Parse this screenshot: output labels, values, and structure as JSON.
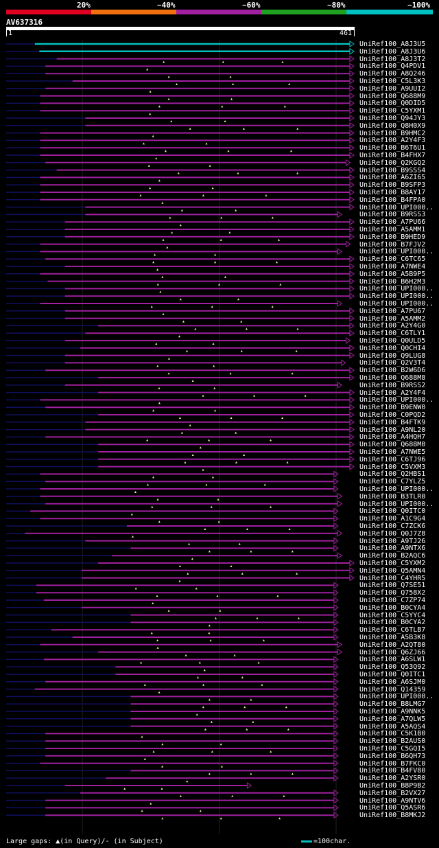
{
  "header": {
    "percent_ticks": [
      "20%",
      "~40%",
      "~60%",
      "~80%",
      "~100%"
    ],
    "identity_colors": [
      "#e00020",
      "#f07010",
      "#a020a0",
      "#20a020",
      "#00c0c0"
    ]
  },
  "query": {
    "id": "AV637316",
    "start": "1",
    "end": "461",
    "length": 461
  },
  "colors": {
    "hit_magenta": "#a020a0",
    "hit_cyan": "#00c0c0",
    "left_tail": "#101060",
    "gap_marker": "#f0f0a0"
  },
  "hits": [
    {
      "label": "UniRef100_A8J3U5",
      "start": 38,
      "end": 461,
      "color": "cyan"
    },
    {
      "label": "UniRef100_A8J3U6",
      "start": 44,
      "end": 461,
      "color": "cyan"
    },
    {
      "label": "UniRef100_A8J3T2",
      "start": 67,
      "end": 461
    },
    {
      "label": "UniRef100_Q4PDV1",
      "start": 52,
      "end": 461
    },
    {
      "label": "UniRef100_A8Q246",
      "start": 52,
      "end": 461
    },
    {
      "label": "UniRef100_C5L3K3",
      "start": 88,
      "end": 461
    },
    {
      "label": "UniRef100_A9UUI2",
      "start": 52,
      "end": 461
    },
    {
      "label": "UniRef100_Q688M9",
      "start": 45,
      "end": 461
    },
    {
      "label": "UniRef100_Q0DID5",
      "start": 45,
      "end": 461
    },
    {
      "label": "UniRef100_C5YXM1",
      "start": 45,
      "end": 461
    },
    {
      "label": "UniRef100_Q94JY3",
      "start": 105,
      "end": 461
    },
    {
      "label": "UniRef100_Q8H0X9",
      "start": 105,
      "end": 461
    },
    {
      "label": "UniRef100_B9HMC2",
      "start": 45,
      "end": 461
    },
    {
      "label": "UniRef100_A2Y4F3",
      "start": 45,
      "end": 461
    },
    {
      "label": "UniRef100_B6T6U1",
      "start": 45,
      "end": 461
    },
    {
      "label": "UniRef100_B4FHX7",
      "start": 45,
      "end": 461
    },
    {
      "label": "UniRef100_Q2KGQ2",
      "start": 52,
      "end": 456
    },
    {
      "label": "UniRef100_B9SSS4",
      "start": 67,
      "end": 461
    },
    {
      "label": "UniRef100_A6ZI65",
      "start": 45,
      "end": 461
    },
    {
      "label": "UniRef100_B9SFP3",
      "start": 45,
      "end": 461
    },
    {
      "label": "UniRef100_B8AY17",
      "start": 45,
      "end": 461
    },
    {
      "label": "UniRef100_B4FPA0",
      "start": 45,
      "end": 461
    },
    {
      "label": "UniRef100_UPI000..",
      "start": 105,
      "end": 461
    },
    {
      "label": "UniRef100_B9RSS3",
      "start": 105,
      "end": 445
    },
    {
      "label": "UniRef100_A7PU66",
      "start": 78,
      "end": 461
    },
    {
      "label": "UniRef100_A5AMM1",
      "start": 78,
      "end": 461
    },
    {
      "label": "UniRef100_B9HED9",
      "start": 78,
      "end": 461
    },
    {
      "label": "UniRef100_B7FJV2",
      "start": 45,
      "end": 456
    },
    {
      "label": "UniRef100_UPI000..",
      "start": 45,
      "end": 445
    },
    {
      "label": "UniRef100_C6TC65",
      "start": 52,
      "end": 461
    },
    {
      "label": "UniRef100_A7NWE4",
      "start": 78,
      "end": 461
    },
    {
      "label": "UniRef100_A5B9P5",
      "start": 45,
      "end": 461
    },
    {
      "label": "UniRef100_B6H2M3",
      "start": 55,
      "end": 461
    },
    {
      "label": "UniRef100_UPI000..",
      "start": 78,
      "end": 461
    },
    {
      "label": "UniRef100_UPI000..",
      "start": 78,
      "end": 461
    },
    {
      "label": "UniRef100_UPI000..",
      "start": 45,
      "end": 445
    },
    {
      "label": "UniRef100_A7PU67",
      "start": 78,
      "end": 461
    },
    {
      "label": "UniRef100_A5AMM2",
      "start": 78,
      "end": 461
    },
    {
      "label": "UniRef100_A2Y4G0",
      "start": 122,
      "end": 461
    },
    {
      "label": "UniRef100_C6TLY1",
      "start": 105,
      "end": 461
    },
    {
      "label": "UniRef100_Q0ULD5",
      "start": 78,
      "end": 456
    },
    {
      "label": "UniRef100_Q0CHI4",
      "start": 98,
      "end": 461
    },
    {
      "label": "UniRef100_Q9LUG8",
      "start": 78,
      "end": 461
    },
    {
      "label": "UniRef100_Q2V3T4",
      "start": 78,
      "end": 450
    },
    {
      "label": "UniRef100_B2W6D6",
      "start": 52,
      "end": 461
    },
    {
      "label": "UniRef100_Q688M8",
      "start": 122,
      "end": 461
    },
    {
      "label": "UniRef100_B9RSS2",
      "start": 78,
      "end": 445
    },
    {
      "label": "UniRef100_A2Y4F4",
      "start": 122,
      "end": 461
    },
    {
      "label": "UniRef100_UPI000..",
      "start": 45,
      "end": 461
    },
    {
      "label": "UniRef100_B9ENW0",
      "start": 52,
      "end": 461
    },
    {
      "label": "UniRef100_C0PQD2",
      "start": 122,
      "end": 461
    },
    {
      "label": "UniRef100_B4FTK9",
      "start": 105,
      "end": 461
    },
    {
      "label": "UniRef100_A9NL20",
      "start": 105,
      "end": 461
    },
    {
      "label": "UniRef100_A4HQH7",
      "start": 52,
      "end": 461
    },
    {
      "label": "UniRef100_Q688M0",
      "start": 122,
      "end": 461
    },
    {
      "label": "UniRef100_A7NWE5",
      "start": 122,
      "end": 461
    },
    {
      "label": "UniRef100_C6TJ96",
      "start": 122,
      "end": 461
    },
    {
      "label": "UniRef100_C5VXM3",
      "start": 122,
      "end": 461
    },
    {
      "label": "UniRef100_Q2HBS1",
      "start": 45,
      "end": 440
    },
    {
      "label": "UniRef100_C7YLZ5",
      "start": 52,
      "end": 440
    },
    {
      "label": "UniRef100_UPI000..",
      "start": 45,
      "end": 440
    },
    {
      "label": "UniRef100_B3TLR0",
      "start": 45,
      "end": 445
    },
    {
      "label": "UniRef100_UPI000..",
      "start": 52,
      "end": 445
    },
    {
      "label": "UniRef100_Q0ITC0",
      "start": 32,
      "end": 440
    },
    {
      "label": "UniRef100_A1C9G4",
      "start": 45,
      "end": 440
    },
    {
      "label": "UniRef100_C7ZCK6",
      "start": 160,
      "end": 440
    },
    {
      "label": "UniRef100_Q0J7Z8",
      "start": 25,
      "end": 445
    },
    {
      "label": "UniRef100_A9TJ26",
      "start": 105,
      "end": 440
    },
    {
      "label": "UniRef100_A9NTX6",
      "start": 165,
      "end": 440
    },
    {
      "label": "UniRef100_B2AQC6",
      "start": 140,
      "end": 445
    },
    {
      "label": "UniRef100_C5YXM2",
      "start": 122,
      "end": 461
    },
    {
      "label": "UniRef100_Q5AMN4",
      "start": 100,
      "end": 461
    },
    {
      "label": "UniRef100_C4YHR5",
      "start": 100,
      "end": 461
    },
    {
      "label": "UniRef100_Q7SE51",
      "start": 40,
      "end": 440
    },
    {
      "label": "UniRef100_Q758X2",
      "start": 40,
      "end": 440
    },
    {
      "label": "UniRef100_C7ZP74",
      "start": 50,
      "end": 440
    },
    {
      "label": "UniRef100_B0CYA4",
      "start": 100,
      "end": 440
    },
    {
      "label": "UniRef100_C5YYC4",
      "start": 165,
      "end": 440
    },
    {
      "label": "UniRef100_B0CYA2",
      "start": 165,
      "end": 440
    },
    {
      "label": "UniRef100_C6TLB7",
      "start": 60,
      "end": 440
    },
    {
      "label": "UniRef100_A5B3K8",
      "start": 88,
      "end": 440
    },
    {
      "label": "UniRef100_A2QT80",
      "start": 45,
      "end": 445
    },
    {
      "label": "UniRef100_Q6ZJ66",
      "start": 122,
      "end": 445
    },
    {
      "label": "UniRef100_A6SLW1",
      "start": 50,
      "end": 440
    },
    {
      "label": "UniRef100_Q53Q92",
      "start": 145,
      "end": 440
    },
    {
      "label": "UniRef100_Q0ITC1",
      "start": 145,
      "end": 440
    },
    {
      "label": "UniRef100_A6SJM0",
      "start": 52,
      "end": 440
    },
    {
      "label": "UniRef100_Q14359",
      "start": 38,
      "end": 440
    },
    {
      "label": "UniRef100_UPI000..",
      "start": 165,
      "end": 440
    },
    {
      "label": "UniRef100_B8LMG7",
      "start": 165,
      "end": 440
    },
    {
      "label": "UniRef100_A9NNK5",
      "start": 165,
      "end": 440
    },
    {
      "label": "UniRef100_A7QLW5",
      "start": 165,
      "end": 440
    },
    {
      "label": "UniRef100_A5AQS4",
      "start": 165,
      "end": 440
    },
    {
      "label": "UniRef100_C5K1B0",
      "start": 52,
      "end": 440
    },
    {
      "label": "UniRef100_B2AUS0",
      "start": 52,
      "end": 440
    },
    {
      "label": "UniRef100_C5GQI5",
      "start": 52,
      "end": 440
    },
    {
      "label": "UniRef100_B6QH73",
      "start": 52,
      "end": 440
    },
    {
      "label": "UniRef100_B7FKC0",
      "start": 45,
      "end": 440
    },
    {
      "label": "UniRef100_B4FV80",
      "start": 165,
      "end": 440
    },
    {
      "label": "UniRef100_A2YSR0",
      "start": 132,
      "end": 440
    },
    {
      "label": "UniRef100_B8P9B2",
      "start": 78,
      "end": 325
    },
    {
      "label": "UniRef100_B2VX27",
      "start": 98,
      "end": 440
    },
    {
      "label": "UniRef100_A9NTV6",
      "start": 52,
      "end": 440
    },
    {
      "label": "UniRef100_Q5ASR6",
      "start": 52,
      "end": 440
    },
    {
      "label": "UniRef100_B8MKJ2",
      "start": 52,
      "end": 440
    }
  ],
  "footer": {
    "gap_legend": "Large gaps: ▲(in Query)/- (in Subject)",
    "scale_label": "=100char."
  }
}
